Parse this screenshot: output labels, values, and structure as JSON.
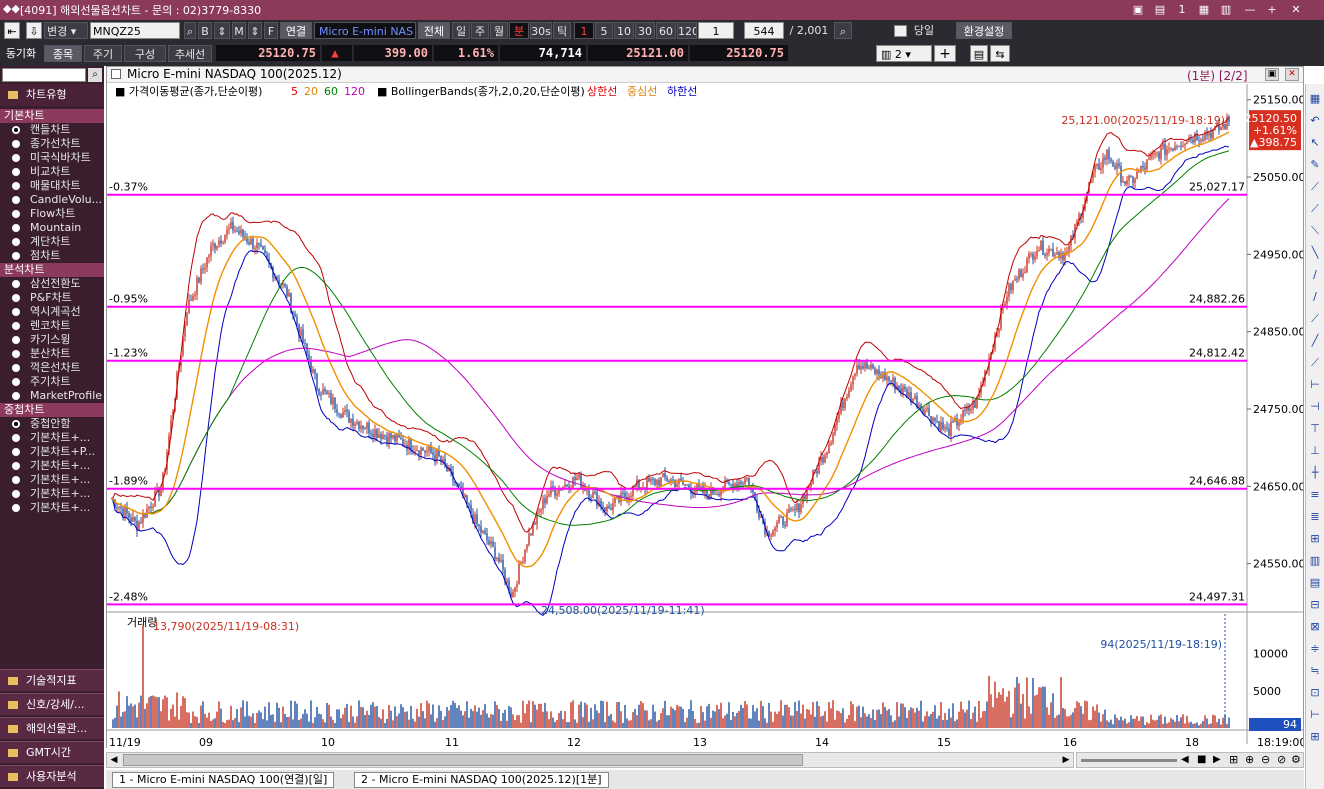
{
  "window": {
    "title": "[4091] 해외선물옵션차트 - 문의 : 02)3779-8330",
    "buttons": [
      "▣",
      "▤",
      "1",
      "▦",
      "▥",
      "—",
      "+",
      "✕"
    ]
  },
  "toolbar1": {
    "change_label": "변경",
    "symbol": "MNQZ25",
    "link_label": "연결",
    "symbol_name": "Micro E-mini NAS",
    "all_label": "전체",
    "periods": [
      "일",
      "주",
      "월",
      "분",
      "30s",
      "틱"
    ],
    "active_period": "분",
    "intervals": [
      "1",
      "5",
      "10",
      "30",
      "60",
      "120"
    ],
    "interval_value": "1",
    "count_value": "544",
    "count_total": "/ 2,001",
    "today_label": "당일",
    "settings_label": "환경설정"
  },
  "toolbar2": {
    "sync_label": "동기화",
    "buttons": [
      "종목",
      "주기",
      "구성",
      "추세선"
    ],
    "quote": {
      "price": "25120.75",
      "arrow": "▲",
      "change": "399.00",
      "change_pct": "1.61%",
      "volume": "74,714",
      "ask": "25121.00",
      "bid": "25120.75"
    },
    "layout_value": "2"
  },
  "left_panel": {
    "header": "차트유형",
    "sections": [
      {
        "title": "기본차트",
        "items": [
          "캔들차트",
          "종가선차트",
          "미국식바차트",
          "비교차트",
          "매물대차트",
          "CandleVolu...",
          "Flow차트",
          "Mountain",
          "계단차트",
          "점차트"
        ],
        "selected": 0
      },
      {
        "title": "분석차트",
        "items": [
          "삼선전환도",
          "P&F차트",
          "역시계곡선",
          "렌코차트",
          "카기스윙",
          "분산차트",
          "꺽은선차트",
          "주기차트",
          "MarketProfile"
        ],
        "selected": -1
      },
      {
        "title": "중첩차트",
        "items": [
          "중첩안함",
          "기본차트+...",
          "기본차트+P...",
          "기본차트+...",
          "기본차트+...",
          "기본차트+...",
          "기본차트+..."
        ],
        "selected": 0
      }
    ],
    "bottom_buttons": [
      "기술적지표",
      "신호/강세/...",
      "해외선물관...",
      "GMT시간",
      "사용자분석"
    ]
  },
  "chart": {
    "title": "Micro E-mini NASDAQ 100(2025.12)",
    "period_label": "(1분) [2/2]",
    "legend": {
      "ma_label": "가격이동평균(종가,단순이평)",
      "ma_periods": [
        {
          "label": "5",
          "color": "#e00000"
        },
        {
          "label": "20",
          "color": "#e08000"
        },
        {
          "label": "60",
          "color": "#008000"
        },
        {
          "label": "120",
          "color": "#c000c0"
        }
      ],
      "bb_label": "BollingerBands(종가,2,0,20,단순이평)",
      "bb_lines": [
        {
          "label": "상한선",
          "color": "#e00000"
        },
        {
          "label": "중심선",
          "color": "#e08000"
        },
        {
          "label": "하한선",
          "color": "#0000c0"
        }
      ]
    },
    "price_axis_ticks": [
      "25150.00",
      "25050.00",
      "24950.00",
      "24850.00",
      "24750.00",
      "24650.00",
      "24550.00"
    ],
    "current_price_box": [
      "25120.50",
      "+1.61%",
      "▲398.75"
    ],
    "high_annotation": "25,121.00(2025/11/19-18:19)",
    "low_annotation": "24,508.00(2025/11/19-11:41)",
    "levels": [
      {
        "pct": "-0.37%",
        "value": "25,027.17"
      },
      {
        "pct": "-0.95%",
        "value": "24,882.26"
      },
      {
        "pct": "-1.23%",
        "value": "24,812.42"
      },
      {
        "pct": "-1.89%",
        "value": "24,646.88"
      },
      {
        "pct": "-2.48%",
        "value": "24,497.31"
      }
    ],
    "level_color": "#ff00ff",
    "volume": {
      "title": "거래량",
      "max_annotation": "13,790(2025/11/19-08:31)",
      "last_annotation": "94(2025/11/19-18:19)",
      "ticks": [
        "10000",
        "5000"
      ],
      "last_value": "94"
    },
    "time_axis": [
      "11/19",
      "09",
      "10",
      "11",
      "12",
      "13",
      "14",
      "15",
      "16",
      "18",
      "18:19:00"
    ],
    "up_color": "#c83020",
    "down_color": "#2050a0"
  },
  "tabs": [
    "1 - Micro E-mini NASDAQ 100(연결)[일]",
    "2 - Micro E-mini NASDAQ 100(2025.12)[1분]"
  ]
}
